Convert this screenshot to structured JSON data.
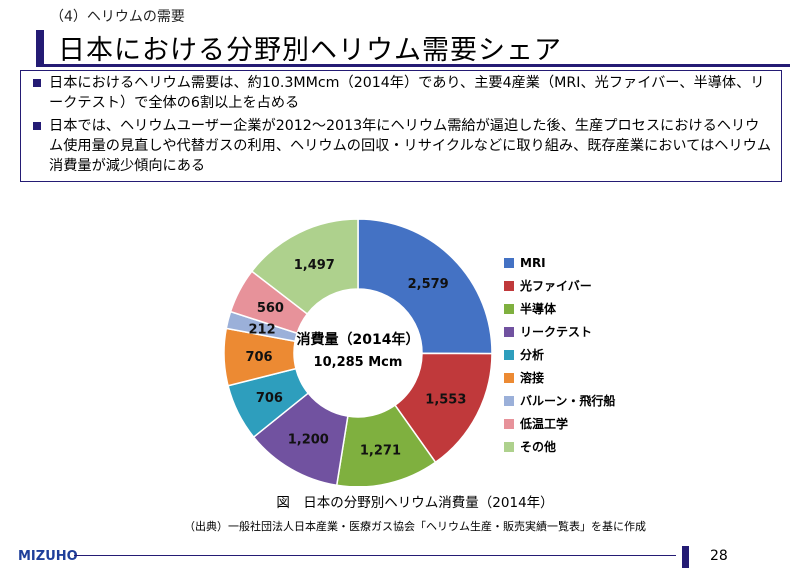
{
  "slide": {
    "subtitle": "（4）ヘリウムの需要",
    "title": "日本における分野別ヘリウム需要シェア",
    "bullets": [
      "日本におけるヘリウム需要は、約10.3MMcm（2014年）であり、主要4産業（MRI、光ファイバー、半導体、リークテスト）で全体の6割以上を占める",
      "日本では、ヘリウムユーザー企業が2012～2013年にヘリウム需給が逼迫した後、生産プロセスにおけるヘリウム使用量の見直しや代替ガスの利用、ヘリウムの回収・リサイクルなどに取り組み、既存産業においてはヘリウム消費量が減少傾向にある"
    ],
    "figure_caption": "図　日本の分野別ヘリウム消費量（2014年）",
    "source": "（出典）一般社団法人日本産業・医療ガス協会「ヘリウム生産・販売実績一覧表」を基に作成",
    "logo": "MIZUHO",
    "page_number": "28"
  },
  "chart_data": {
    "type": "pie",
    "donut": true,
    "title": "",
    "center_label": "消費量（2014年）",
    "center_value": "10,285 Mcm",
    "legend_position": "right",
    "categories": [
      "MRI",
      "光ファイバー",
      "半導体",
      "リークテスト",
      "分析",
      "溶接",
      "バルーン・飛行船",
      "低温工学",
      "その他"
    ],
    "values": [
      2579,
      1553,
      1271,
      1200,
      706,
      706,
      212,
      560,
      1497
    ],
    "labels": [
      "2,579",
      "1,553",
      "1,271",
      "1,200",
      "706",
      "706",
      "212",
      "560",
      "1,497"
    ],
    "colors": [
      "#4472c4",
      "#c0393b",
      "#7fb03f",
      "#7152a0",
      "#2e9ebd",
      "#ec8a33",
      "#9bb0d9",
      "#e7929a",
      "#aed18d"
    ]
  }
}
